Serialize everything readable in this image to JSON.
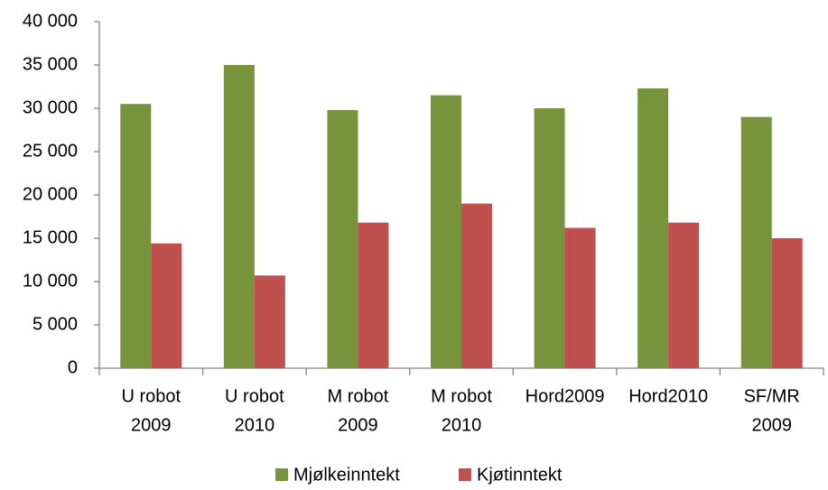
{
  "chart_data": {
    "type": "bar",
    "categories": [
      [
        "U robot",
        "2009"
      ],
      [
        "U robot",
        "2010"
      ],
      [
        "M robot",
        "2009"
      ],
      [
        "M robot",
        "2010"
      ],
      [
        "Hord2009"
      ],
      [
        "Hord2010"
      ],
      [
        "SF/MR",
        "2009"
      ]
    ],
    "series": [
      {
        "name": "Mjølkeinntekt",
        "color": "#77933c",
        "values": [
          30500,
          35000,
          29800,
          31500,
          30000,
          32300,
          29000
        ]
      },
      {
        "name": "Kjøtinntekt",
        "color": "#c0504d",
        "values": [
          14400,
          10700,
          16800,
          19000,
          16200,
          16800,
          15000
        ]
      }
    ],
    "ylim": [
      0,
      40000
    ],
    "yticks": [
      0,
      {
        "value": 5000,
        "label": "5 000"
      },
      {
        "value": 10000,
        "label": "10 000"
      },
      {
        "value": 15000,
        "label": "15 000"
      },
      {
        "value": 20000,
        "label": "20 000"
      },
      {
        "value": 25000,
        "label": "25 000"
      },
      {
        "value": 30000,
        "label": "30 000"
      },
      {
        "value": 35000,
        "label": "35 000"
      },
      {
        "value": 40000,
        "label": "40 000"
      }
    ],
    "grid": false,
    "legend": "bottom"
  }
}
